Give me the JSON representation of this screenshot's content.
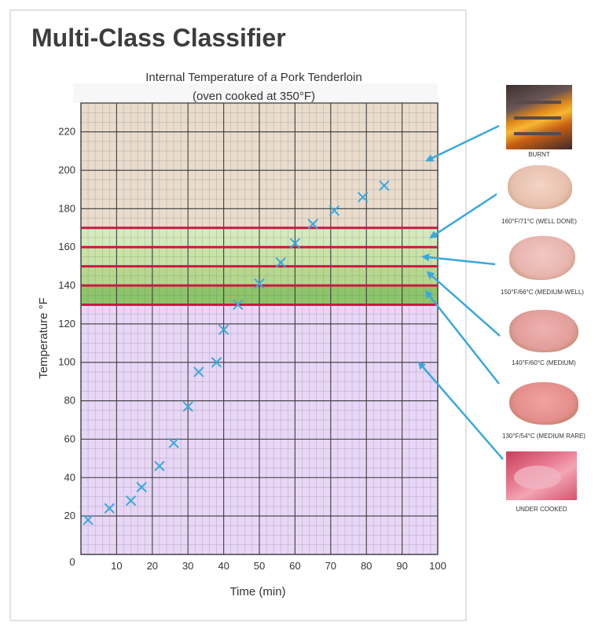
{
  "slide": {
    "title": "Multi-Class Classifier"
  },
  "chart_data": {
    "type": "scatter",
    "title": "Internal Temperature of a Pork Tenderloin",
    "subtitle": "(oven cooked at 350°F)",
    "xlabel": "Time (min)",
    "ylabel": "Temperature  °F",
    "xlim": [
      0,
      100
    ],
    "ylim": [
      0,
      235
    ],
    "x_ticks": [
      10,
      20,
      30,
      40,
      50,
      60,
      70,
      80,
      90,
      100
    ],
    "y_ticks": [
      20,
      40,
      60,
      80,
      100,
      120,
      140,
      160,
      180,
      200,
      220
    ],
    "origin_label": "0",
    "grid": true,
    "marker": "x",
    "marker_color": "#3aa8dc",
    "points": [
      {
        "x": 2,
        "y": 18
      },
      {
        "x": 8,
        "y": 24
      },
      {
        "x": 14,
        "y": 28
      },
      {
        "x": 17,
        "y": 35
      },
      {
        "x": 22,
        "y": 46
      },
      {
        "x": 26,
        "y": 58
      },
      {
        "x": 30,
        "y": 77
      },
      {
        "x": 33,
        "y": 95
      },
      {
        "x": 38,
        "y": 100
      },
      {
        "x": 40,
        "y": 117
      },
      {
        "x": 44,
        "y": 130
      },
      {
        "x": 50,
        "y": 141
      },
      {
        "x": 56,
        "y": 152
      },
      {
        "x": 60,
        "y": 162
      },
      {
        "x": 65,
        "y": 172
      },
      {
        "x": 71,
        "y": 179
      },
      {
        "x": 79,
        "y": 186
      },
      {
        "x": 85,
        "y": 192
      }
    ],
    "threshold_lines": [
      130,
      140,
      150,
      160,
      170
    ],
    "threshold_color": "#cc1744",
    "bands": [
      {
        "from": 0,
        "to": 130,
        "color": "#e8d6f7"
      },
      {
        "from": 130,
        "to": 140,
        "color": "#8ec46a"
      },
      {
        "from": 140,
        "to": 150,
        "color": "#b5d88f"
      },
      {
        "from": 150,
        "to": 160,
        "color": "#c8e2a8"
      },
      {
        "from": 160,
        "to": 170,
        "color": "#d6e9bd"
      },
      {
        "from": 170,
        "to": 235,
        "color": "#e9dccd"
      }
    ]
  },
  "classes": [
    {
      "label": "BURNT",
      "image": "fire-photo",
      "target_temp": 205
    },
    {
      "label": "160°F/71°C (WELL DONE)",
      "image": "pork-well-done-photo",
      "target_temp": 165
    },
    {
      "label": "150°F/66°C (MEDIUM-WELL)",
      "image": "pork-medium-well-photo",
      "target_temp": 155
    },
    {
      "label": "140°F/60°C (MEDIUM)",
      "image": "pork-medium-photo",
      "target_temp": 147
    },
    {
      "label": "130°F/54°C (MEDIUM RARE)",
      "image": "pork-medium-rare-photo",
      "target_temp": 137
    },
    {
      "label": "UNDER COOKED",
      "image": "raw-meat-photo",
      "target_temp": 100
    }
  ],
  "arrow_color": "#3aa8dc"
}
